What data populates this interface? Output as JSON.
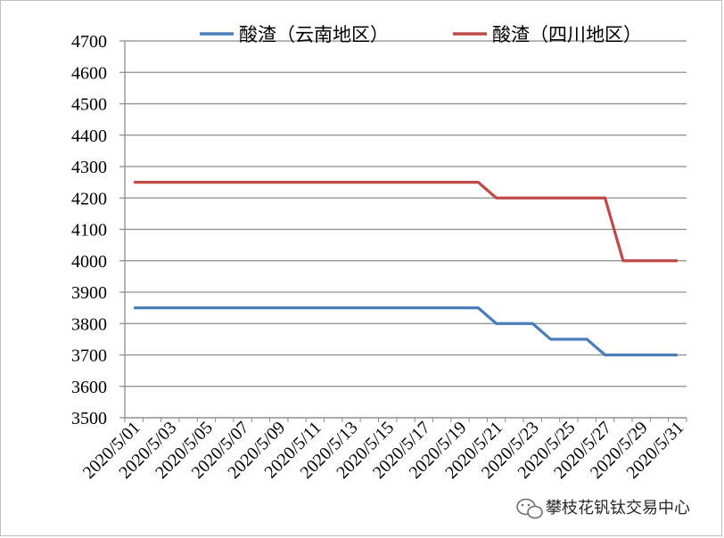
{
  "chart_data": {
    "type": "line",
    "title": "",
    "xlabel": "",
    "ylabel": "",
    "ylim": [
      3500,
      4700
    ],
    "y_ticks": [
      3500,
      3600,
      3700,
      3800,
      3900,
      4000,
      4100,
      4200,
      4300,
      4400,
      4500,
      4600,
      4700
    ],
    "grid": true,
    "legend_position": "top",
    "x": [
      "2020/5/01",
      "2020/5/02",
      "2020/5/03",
      "2020/5/04",
      "2020/5/05",
      "2020/5/06",
      "2020/5/07",
      "2020/5/08",
      "2020/5/09",
      "2020/5/10",
      "2020/5/11",
      "2020/5/12",
      "2020/5/13",
      "2020/5/14",
      "2020/5/15",
      "2020/5/16",
      "2020/5/17",
      "2020/5/18",
      "2020/5/19",
      "2020/5/20",
      "2020/5/21",
      "2020/5/22",
      "2020/5/23",
      "2020/5/24",
      "2020/5/25",
      "2020/5/26",
      "2020/5/27",
      "2020/5/28",
      "2020/5/29",
      "2020/5/30",
      "2020/5/31"
    ],
    "x_tick_labels": [
      "2020/5/01",
      "2020/5/03",
      "2020/5/05",
      "2020/5/07",
      "2020/5/09",
      "2020/5/11",
      "2020/5/13",
      "2020/5/15",
      "2020/5/17",
      "2020/5/19",
      "2020/5/21",
      "2020/5/23",
      "2020/5/25",
      "2020/5/27",
      "2020/5/29",
      "2020/5/31"
    ],
    "series": [
      {
        "name": "酸渣（云南地区）",
        "color": "#4a7ebb",
        "values": [
          3850,
          3850,
          3850,
          3850,
          3850,
          3850,
          3850,
          3850,
          3850,
          3850,
          3850,
          3850,
          3850,
          3850,
          3850,
          3850,
          3850,
          3850,
          3850,
          3850,
          3800,
          3800,
          3800,
          3750,
          3750,
          3750,
          3700,
          3700,
          3700,
          3700,
          3700
        ]
      },
      {
        "name": "酸渣（四川地区）",
        "color": "#be4b48",
        "values": [
          4250,
          4250,
          4250,
          4250,
          4250,
          4250,
          4250,
          4250,
          4250,
          4250,
          4250,
          4250,
          4250,
          4250,
          4250,
          4250,
          4250,
          4250,
          4250,
          4250,
          4200,
          4200,
          4200,
          4200,
          4200,
          4200,
          4200,
          4000,
          4000,
          4000,
          4000
        ]
      }
    ]
  },
  "watermark": {
    "icon": "wechat-icon",
    "text": "攀枝花钒钛交易中心"
  }
}
